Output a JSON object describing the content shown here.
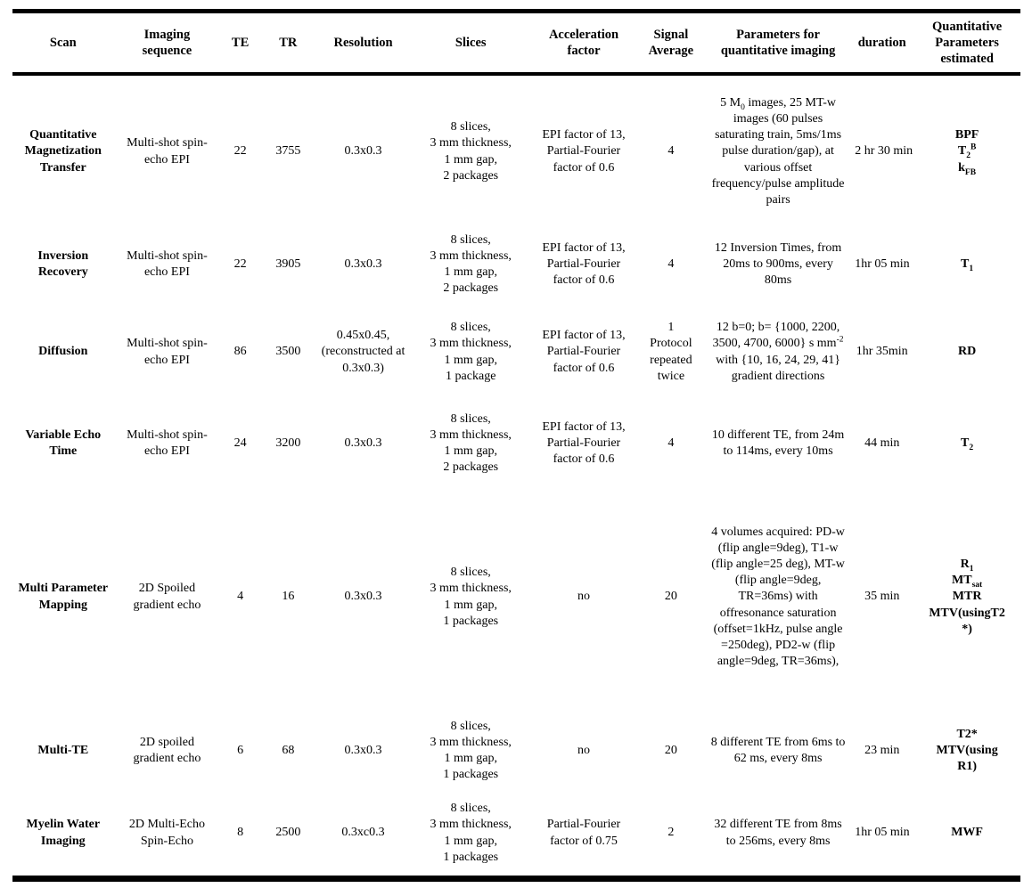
{
  "table": {
    "columns": [
      "Scan",
      "Imaging sequence",
      "TE",
      "TR",
      "Resolution",
      "Slices",
      "Acceleration factor",
      "Signal Average",
      "Parameters for quantitative imaging",
      "duration",
      "Quantitative Parameters estimated"
    ],
    "rows": [
      {
        "cells": [
          "Quantitative Magnetization Transfer",
          "Multi-shot spin-echo EPI",
          "22",
          "3755",
          "0.3x0.3",
          "8 slices,\n3 mm thickness,\n1 mm gap,\n2 packages",
          "EPI factor of 13,\nPartial-Fourier factor of 0.6",
          "4",
          "5 M~0~ images, 25 MT-w images (60 pulses saturating train, 5ms/1ms pulse duration/gap), at various offset frequency/pulse amplitude pairs",
          "2 hr 30 min",
          "BPF\nT~2~^B^\nk~FB~"
        ]
      },
      {
        "cells": [
          "Inversion Recovery",
          "Multi-shot spin-echo EPI",
          "22",
          "3905",
          "0.3x0.3",
          "8 slices,\n3 mm thickness,\n1 mm gap,\n2 packages",
          "EPI factor of 13,\nPartial-Fourier factor of 0.6",
          "4",
          "12 Inversion Times, from 20ms to 900ms, every 80ms",
          "1hr 05 min",
          "T~1~"
        ]
      },
      {
        "cells": [
          "Diffusion",
          "Multi-shot spin-echo EPI",
          "86",
          "3500",
          "0.45x0.45,\n(reconstructed at 0.3x0.3)",
          "8 slices,\n3 mm thickness,\n1 mm gap,\n1 package",
          "EPI factor of 13,\nPartial-Fourier factor of 0.6",
          "1\nProtocol repeated twice",
          "12 b=0; b= {1000, 2200, 3500, 4700, 6000} s mm^-2^ with {10, 16, 24, 29, 41} gradient directions",
          "1hr 35min",
          "RD"
        ]
      },
      {
        "cells": [
          "Variable Echo Time",
          "Multi-shot spin-echo EPI",
          "24",
          "3200",
          "0.3x0.3",
          "8 slices,\n3 mm thickness,\n1 mm gap,\n2 packages",
          "EPI factor of 13,\nPartial-Fourier factor of 0.6",
          "4",
          "10 different TE, from 24m to 114ms, every 10ms",
          "44 min",
          "T~2~"
        ]
      },
      {
        "cells": [
          "Multi Parameter Mapping",
          "2D Spoiled gradient echo",
          "4",
          "16",
          "0.3x0.3",
          "8 slices,\n3 mm thickness,\n1 mm gap,\n1 packages",
          "no",
          "20",
          "4 volumes acquired: PD-w (flip angle=9deg), T1-w (flip angle=25 deg), MT-w (flip angle=9deg, TR=36ms) with offresonance saturation (offset=1kHz, pulse angle =250deg), PD2-w (flip angle=9deg, TR=36ms),",
          "35 min",
          "R~1~\nMT~sat~\nMTR\nMTV(usingT2\n*)"
        ]
      },
      {
        "cells": [
          "Multi-TE",
          "2D spoiled gradient echo",
          "6",
          "68",
          "0.3x0.3",
          "8 slices,\n3 mm thickness,\n1 mm gap,\n1 packages",
          "no",
          "20",
          "8 different TE from 6ms to 62 ms, every 8ms",
          "23 min",
          "T2*\nMTV(using\nR1)"
        ]
      },
      {
        "cells": [
          "Myelin Water Imaging",
          "2D Multi-Echo Spin-Echo",
          "8",
          "2500",
          "0.3xc0.3",
          "8 slices,\n3 mm thickness,\n1 mm gap,\n1 packages",
          "Partial-Fourier factor of 0.75",
          "2",
          "32 different TE from 8ms to 256ms, every 8ms",
          "1hr 05 min",
          "MWF"
        ]
      }
    ]
  }
}
